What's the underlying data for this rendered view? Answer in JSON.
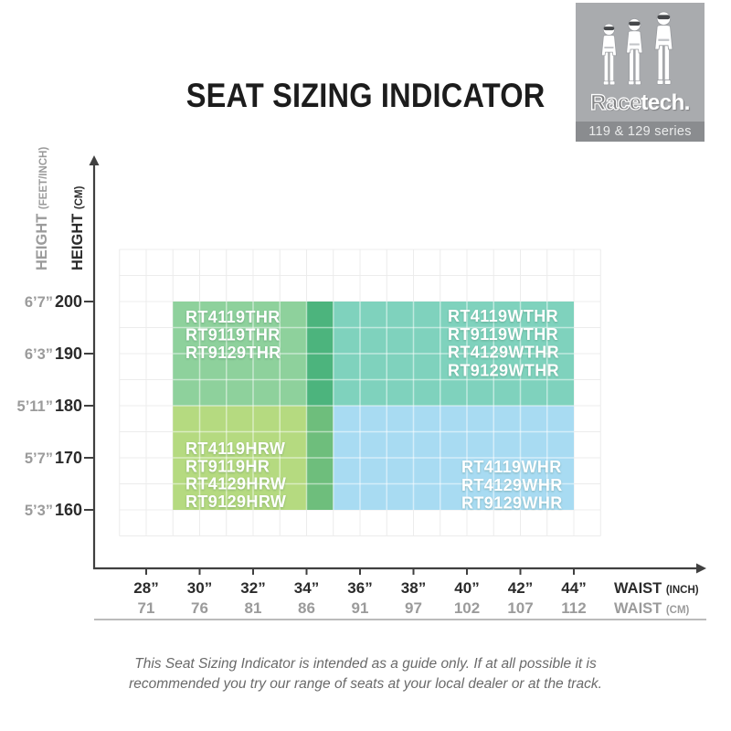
{
  "title": "SEAT SIZING INDICATOR",
  "logo": {
    "brand_outline": "Race",
    "brand_solid": "tech.",
    "series": "119 & 129 series",
    "icon": "three-race-drivers",
    "bg_color": "#a9abae",
    "bar_color": "#8a8c8f"
  },
  "footer": {
    "line1": "This Seat Sizing Indicator is intended as a guide only. If at all possible it is",
    "line2": "recommended you try our range of seats at your local dealer or at the track."
  },
  "chart_data": {
    "type": "heatmap",
    "title": "Seat sizing by waist and height",
    "x_axis": {
      "range_inch": [
        27,
        45
      ],
      "ticks": [
        {
          "inch": 28,
          "inch_label": "28”",
          "cm_label": "71"
        },
        {
          "inch": 30,
          "inch_label": "30”",
          "cm_label": "76"
        },
        {
          "inch": 32,
          "inch_label": "32”",
          "cm_label": "81"
        },
        {
          "inch": 34,
          "inch_label": "34”",
          "cm_label": "86"
        },
        {
          "inch": 36,
          "inch_label": "36”",
          "cm_label": "91"
        },
        {
          "inch": 38,
          "inch_label": "38”",
          "cm_label": "97"
        },
        {
          "inch": 40,
          "inch_label": "40”",
          "cm_label": "102"
        },
        {
          "inch": 42,
          "inch_label": "42”",
          "cm_label": "107"
        },
        {
          "inch": 44,
          "inch_label": "44”",
          "cm_label": "112"
        }
      ]
    },
    "y_axis": {
      "range_cm": [
        155,
        210
      ],
      "ticks": [
        {
          "cm": 200,
          "cm_label": "200",
          "ftin_label": "6’7”"
        },
        {
          "cm": 190,
          "cm_label": "190",
          "ftin_label": "6’3”"
        },
        {
          "cm": 180,
          "cm_label": "180",
          "ftin_label": "5’11”"
        },
        {
          "cm": 170,
          "cm_label": "170",
          "ftin_label": "5’7”"
        },
        {
          "cm": 160,
          "cm_label": "160",
          "ftin_label": "5’3”"
        }
      ]
    },
    "axis_titles": {
      "x_primary": "WAIST",
      "x_primary_unit": "(INCH)",
      "x_secondary": "WAIST",
      "x_secondary_unit": "(CM)",
      "y_primary": "HEIGHT",
      "y_primary_unit": "(CM)",
      "y_secondary": "HEIGHT",
      "y_secondary_unit": "(FEET/INCH)"
    },
    "regions": [
      {
        "id": "tall",
        "waist_inch": [
          29,
          35
        ],
        "height_cm": [
          180,
          200
        ],
        "color": "#8ed19c",
        "label_pos": "top-left",
        "models": [
          "RT4119THR",
          "RT9119THR",
          "RT9129THR"
        ]
      },
      {
        "id": "wide-tall",
        "waist_inch": [
          34,
          44
        ],
        "height_cm": [
          180,
          200
        ],
        "color": "#7fd2bd",
        "label_pos": "top-right",
        "models": [
          "RT4119WTHR",
          "RT9119WTHR",
          "RT4129WTHR",
          "RT9129WTHR"
        ]
      },
      {
        "id": "standard",
        "waist_inch": [
          29,
          35
        ],
        "height_cm": [
          160,
          180
        ],
        "color": "#b5da80",
        "label_pos": "bottom-left",
        "models": [
          "RT4119HRW",
          "RT9119HR",
          "RT4129HRW",
          "RT9129HRW"
        ]
      },
      {
        "id": "wide",
        "waist_inch": [
          34,
          44
        ],
        "height_cm": [
          160,
          180
        ],
        "color": "#a8dbf2",
        "label_pos": "bottom-right",
        "models": [
          "RT4119WHR",
          "RT4129WHR",
          "RT9129WHR"
        ]
      }
    ],
    "overlaps": [
      {
        "waist_inch": [
          34,
          35
        ],
        "height_cm": [
          180,
          200
        ],
        "color": "#4cb47d"
      },
      {
        "waist_inch": [
          34,
          35
        ],
        "height_cm": [
          160,
          180
        ],
        "color": "#6ebe7c"
      }
    ],
    "grid": {
      "background_line_color": "#ececec",
      "region_line_color": "rgba(255,255,255,0.5)",
      "axis_color": "#404040"
    }
  }
}
